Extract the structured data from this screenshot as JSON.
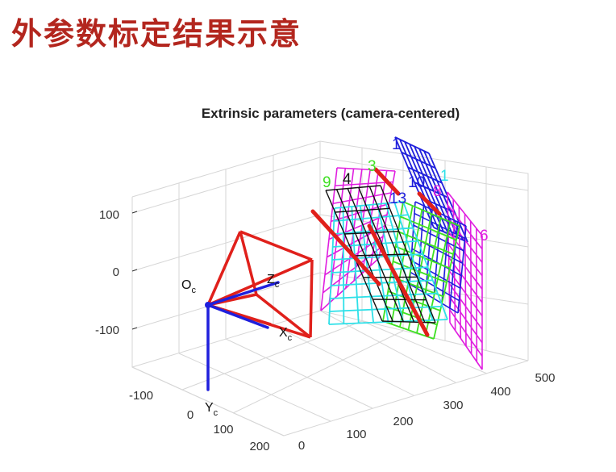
{
  "slide": {
    "title": "外参数标定结果示意"
  },
  "figure": {
    "title": "Extrinsic parameters (camera-centered)",
    "y_ticks": [
      "100",
      "0",
      "-100"
    ],
    "x_ticks": [
      "-100",
      "0",
      "100",
      "200"
    ],
    "z_ticks": [
      "0",
      "100",
      "200",
      "300",
      "400",
      "500"
    ],
    "camera": {
      "origin_main": "O",
      "origin_sub": "c",
      "x_main": "X",
      "x_sub": "c",
      "y_main": "Y",
      "y_sub": "c",
      "z_main": "Z",
      "z_sub": "c"
    },
    "colors": {
      "red": "#e0201b",
      "blue": "#1f1fdc",
      "magenta": "#e01ee0",
      "cyan": "#2ee0e8",
      "green": "#3ee021",
      "black": "#111111"
    },
    "board_labels": [
      {
        "id": "1",
        "color": "#1f1fdc"
      },
      {
        "id": "3",
        "color": "#3ee021"
      },
      {
        "id": "4",
        "color": "#111111"
      },
      {
        "id": "9",
        "color": "#3ee021"
      },
      {
        "id": "13",
        "color": "#1f1fdc"
      },
      {
        "id": "10",
        "color": "#1f1fdc"
      },
      {
        "id": "8",
        "color": "#e01ee0"
      },
      {
        "id": "1",
        "color": "#2ee0e8"
      },
      {
        "id": "6",
        "color": "#e01ee0"
      }
    ]
  }
}
